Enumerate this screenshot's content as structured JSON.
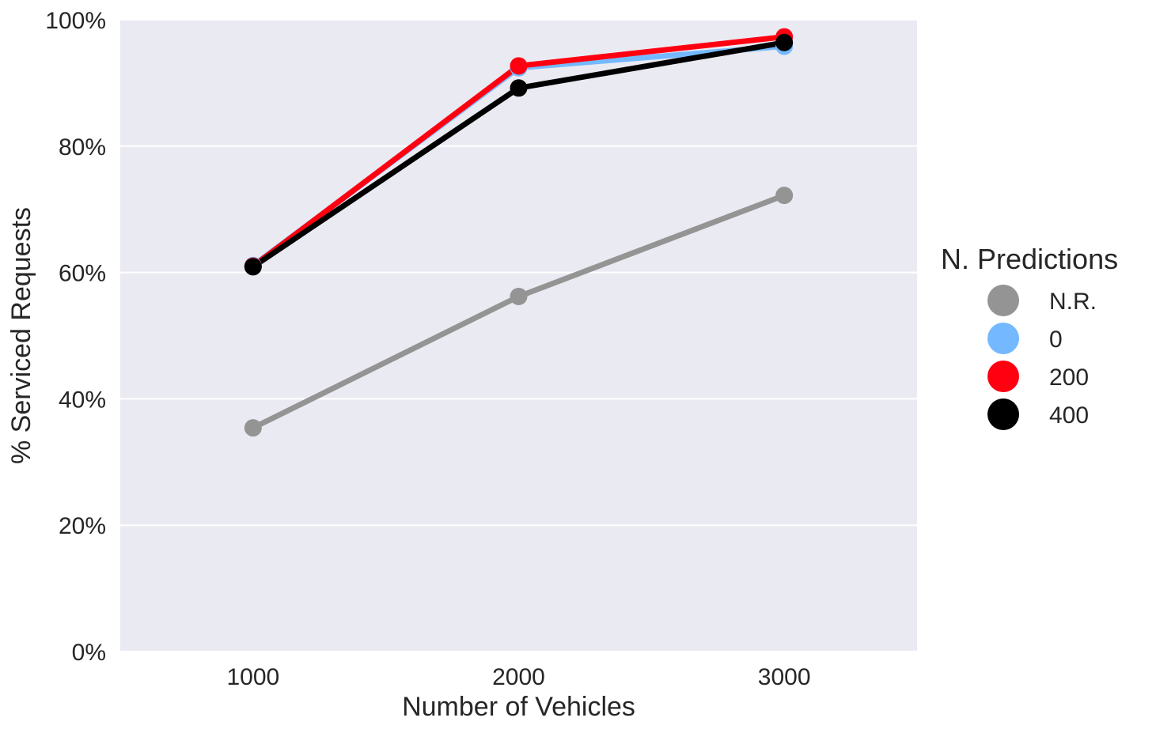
{
  "chart_data": {
    "type": "line",
    "title": "",
    "xlabel": "Number of Vehicles",
    "ylabel": "% Serviced Requests",
    "categories": [
      "1000",
      "2000",
      "3000"
    ],
    "ylim": [
      0,
      100
    ],
    "y_ticks": [
      0,
      20,
      40,
      60,
      80,
      100
    ],
    "y_tick_labels": [
      "0%",
      "20%",
      "40%",
      "60%",
      "80%",
      "100%"
    ],
    "grid": "horizontal",
    "background": "#EAEAF2",
    "legend": {
      "title": "N. Predictions",
      "placement": "right"
    },
    "series": [
      {
        "name": "N.R.",
        "color": "#949494",
        "values": [
          35.4,
          56.2,
          72.2
        ]
      },
      {
        "name": "0",
        "color": "#74B9FF",
        "values": [
          61.1,
          92.4,
          95.8
        ]
      },
      {
        "name": "200",
        "color": "#FF0011",
        "values": [
          61.0,
          92.7,
          97.3
        ]
      },
      {
        "name": "400",
        "color": "#000000",
        "values": [
          60.9,
          89.2,
          96.4
        ]
      }
    ]
  }
}
